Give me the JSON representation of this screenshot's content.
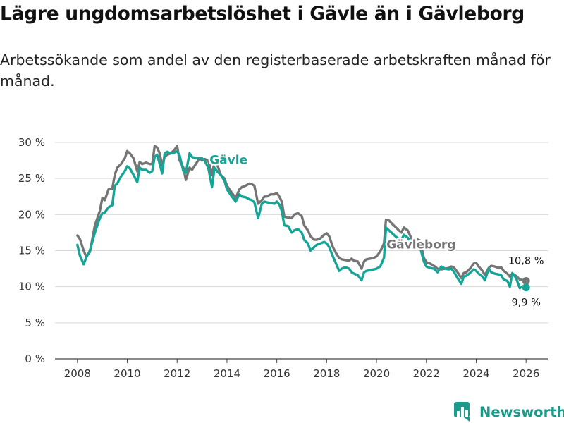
{
  "title": "Lägre ungdomsarbetslöshet i Gävle än i Gävleborg",
  "subtitle": "Arbetssökande som andel av den registerbaserade arbetskraften månad för månad.",
  "brand": {
    "name": "Newsworthy",
    "color": "#1c9a8a"
  },
  "chart_data": {
    "type": "line",
    "title": "Lägre ungdomsarbetslöshet i Gävle än i Gävleborg",
    "subtitle": "Arbetssökande som andel av den registerbaserade arbetskraften månad för månad.",
    "xlabel": "",
    "ylabel": "",
    "xlim": [
      2007.1,
      2026.9
    ],
    "ylim": [
      0,
      30
    ],
    "x_ticks": [
      2008,
      2010,
      2012,
      2014,
      2016,
      2018,
      2020,
      2022,
      2024,
      2026
    ],
    "x_tick_labels": [
      "2008",
      "2010",
      "2012",
      "2014",
      "2016",
      "2018",
      "2020",
      "2022",
      "2024",
      "2026"
    ],
    "y_ticks": [
      0,
      5,
      10,
      15,
      20,
      25,
      30
    ],
    "y_tick_labels": [
      "0 %",
      "5 %",
      "10 %",
      "15 %",
      "20 %",
      "25 %",
      "30 %"
    ],
    "grid": "horizontal",
    "legend": "inline labels",
    "series": [
      {
        "name": "Gävleborg",
        "color": "#757575",
        "end_label": "10,8 %",
        "points": [
          [
            2008.0,
            17.1
          ],
          [
            2008.1,
            16.6
          ],
          [
            2008.25,
            15.0
          ],
          [
            2008.35,
            14.2
          ],
          [
            2008.5,
            14.8
          ],
          [
            2008.7,
            18.5
          ],
          [
            2008.9,
            20.5
          ],
          [
            2009.0,
            22.3
          ],
          [
            2009.1,
            22.0
          ],
          [
            2009.25,
            23.5
          ],
          [
            2009.4,
            23.6
          ],
          [
            2009.5,
            25.5
          ],
          [
            2009.6,
            26.5
          ],
          [
            2009.75,
            27.0
          ],
          [
            2009.9,
            27.8
          ],
          [
            2010.0,
            28.8
          ],
          [
            2010.1,
            28.5
          ],
          [
            2010.25,
            27.8
          ],
          [
            2010.4,
            26.0
          ],
          [
            2010.5,
            27.3
          ],
          [
            2010.6,
            27.0
          ],
          [
            2010.75,
            27.2
          ],
          [
            2010.9,
            27.0
          ],
          [
            2011.0,
            27.0
          ],
          [
            2011.1,
            29.5
          ],
          [
            2011.2,
            29.3
          ],
          [
            2011.3,
            28.5
          ],
          [
            2011.4,
            26.8
          ],
          [
            2011.5,
            28.0
          ],
          [
            2011.6,
            28.3
          ],
          [
            2011.75,
            28.5
          ],
          [
            2011.9,
            29.0
          ],
          [
            2012.0,
            29.5
          ],
          [
            2012.1,
            27.5
          ],
          [
            2012.25,
            26.5
          ],
          [
            2012.35,
            24.8
          ],
          [
            2012.5,
            26.5
          ],
          [
            2012.6,
            26.2
          ],
          [
            2012.75,
            27.0
          ],
          [
            2012.9,
            27.8
          ],
          [
            2013.0,
            27.5
          ],
          [
            2013.1,
            27.7
          ],
          [
            2013.25,
            27.5
          ],
          [
            2013.4,
            25.5
          ],
          [
            2013.5,
            27.3
          ],
          [
            2013.6,
            27.0
          ],
          [
            2013.75,
            25.5
          ],
          [
            2013.9,
            25.0
          ],
          [
            2014.0,
            24.0
          ],
          [
            2014.2,
            23.0
          ],
          [
            2014.35,
            22.3
          ],
          [
            2014.5,
            23.5
          ],
          [
            2014.6,
            23.8
          ],
          [
            2014.75,
            24.0
          ],
          [
            2014.9,
            24.3
          ],
          [
            2015.0,
            24.2
          ],
          [
            2015.1,
            24.0
          ],
          [
            2015.25,
            21.5
          ],
          [
            2015.4,
            22.0
          ],
          [
            2015.5,
            22.5
          ],
          [
            2015.6,
            22.5
          ],
          [
            2015.75,
            22.8
          ],
          [
            2015.9,
            22.8
          ],
          [
            2016.0,
            23.0
          ],
          [
            2016.1,
            22.5
          ],
          [
            2016.2,
            21.8
          ],
          [
            2016.3,
            19.7
          ],
          [
            2016.45,
            19.6
          ],
          [
            2016.6,
            19.5
          ],
          [
            2016.7,
            20.0
          ],
          [
            2016.85,
            20.2
          ],
          [
            2017.0,
            19.8
          ],
          [
            2017.1,
            18.5
          ],
          [
            2017.25,
            17.8
          ],
          [
            2017.35,
            17.0
          ],
          [
            2017.5,
            16.5
          ],
          [
            2017.6,
            16.5
          ],
          [
            2017.75,
            16.7
          ],
          [
            2017.9,
            17.2
          ],
          [
            2018.0,
            17.4
          ],
          [
            2018.1,
            17.0
          ],
          [
            2018.25,
            15.5
          ],
          [
            2018.4,
            14.5
          ],
          [
            2018.5,
            14.0
          ],
          [
            2018.6,
            13.8
          ],
          [
            2018.75,
            13.7
          ],
          [
            2018.9,
            13.6
          ],
          [
            2019.0,
            13.9
          ],
          [
            2019.1,
            13.6
          ],
          [
            2019.25,
            13.5
          ],
          [
            2019.4,
            12.5
          ],
          [
            2019.5,
            13.5
          ],
          [
            2019.6,
            13.8
          ],
          [
            2019.75,
            13.9
          ],
          [
            2019.9,
            14.0
          ],
          [
            2020.0,
            14.2
          ],
          [
            2020.15,
            14.9
          ],
          [
            2020.3,
            16.0
          ],
          [
            2020.38,
            19.3
          ],
          [
            2020.5,
            19.2
          ],
          [
            2020.6,
            18.8
          ],
          [
            2020.75,
            18.3
          ],
          [
            2020.9,
            17.8
          ],
          [
            2021.0,
            17.5
          ],
          [
            2021.1,
            18.2
          ],
          [
            2021.25,
            17.8
          ],
          [
            2021.4,
            16.7
          ],
          [
            2021.5,
            16.5
          ],
          [
            2021.6,
            16.6
          ],
          [
            2021.75,
            16.4
          ],
          [
            2021.9,
            14.0
          ],
          [
            2022.0,
            13.4
          ],
          [
            2022.15,
            13.2
          ],
          [
            2022.3,
            12.9
          ],
          [
            2022.45,
            12.5
          ],
          [
            2022.6,
            12.4
          ],
          [
            2022.75,
            12.5
          ],
          [
            2022.9,
            12.6
          ],
          [
            2023.0,
            12.8
          ],
          [
            2023.1,
            12.7
          ],
          [
            2023.25,
            12.0
          ],
          [
            2023.4,
            11.2
          ],
          [
            2023.5,
            11.9
          ],
          [
            2023.6,
            12.0
          ],
          [
            2023.75,
            12.5
          ],
          [
            2023.9,
            13.2
          ],
          [
            2024.0,
            13.3
          ],
          [
            2024.1,
            12.8
          ],
          [
            2024.25,
            12.2
          ],
          [
            2024.35,
            11.6
          ],
          [
            2024.5,
            12.6
          ],
          [
            2024.6,
            12.9
          ],
          [
            2024.75,
            12.8
          ],
          [
            2024.9,
            12.6
          ],
          [
            2025.0,
            12.7
          ],
          [
            2025.1,
            12.2
          ],
          [
            2025.25,
            11.8
          ],
          [
            2025.35,
            11.4
          ],
          [
            2025.45,
            11.8
          ],
          [
            2025.6,
            11.5
          ],
          [
            2025.75,
            11.0
          ],
          [
            2025.9,
            10.9
          ],
          [
            2026.0,
            10.8
          ]
        ]
      },
      {
        "name": "Gävle",
        "color": "#14a596",
        "end_label": "9,9 %",
        "points": [
          [
            2008.0,
            15.8
          ],
          [
            2008.1,
            14.3
          ],
          [
            2008.25,
            13.1
          ],
          [
            2008.35,
            14.0
          ],
          [
            2008.5,
            15.0
          ],
          [
            2008.7,
            17.5
          ],
          [
            2008.9,
            19.5
          ],
          [
            2009.0,
            20.2
          ],
          [
            2009.1,
            20.3
          ],
          [
            2009.25,
            21.0
          ],
          [
            2009.4,
            21.3
          ],
          [
            2009.5,
            24.0
          ],
          [
            2009.6,
            24.3
          ],
          [
            2009.75,
            25.3
          ],
          [
            2009.9,
            26.0
          ],
          [
            2010.0,
            26.7
          ],
          [
            2010.1,
            26.4
          ],
          [
            2010.25,
            25.5
          ],
          [
            2010.4,
            24.5
          ],
          [
            2010.5,
            26.5
          ],
          [
            2010.6,
            26.2
          ],
          [
            2010.75,
            26.2
          ],
          [
            2010.9,
            25.8
          ],
          [
            2011.0,
            26.0
          ],
          [
            2011.1,
            28.0
          ],
          [
            2011.2,
            28.3
          ],
          [
            2011.3,
            27.0
          ],
          [
            2011.4,
            25.7
          ],
          [
            2011.5,
            28.5
          ],
          [
            2011.6,
            28.7
          ],
          [
            2011.75,
            28.5
          ],
          [
            2011.9,
            28.6
          ],
          [
            2012.0,
            28.8
          ],
          [
            2012.1,
            28.2
          ],
          [
            2012.25,
            26.0
          ],
          [
            2012.35,
            25.8
          ],
          [
            2012.5,
            28.5
          ],
          [
            2012.6,
            28.0
          ],
          [
            2012.75,
            27.8
          ],
          [
            2012.9,
            27.8
          ],
          [
            2013.0,
            27.8
          ],
          [
            2013.1,
            27.5
          ],
          [
            2013.25,
            26.5
          ],
          [
            2013.4,
            23.8
          ],
          [
            2013.5,
            26.5
          ],
          [
            2013.6,
            26.0
          ],
          [
            2013.75,
            25.5
          ],
          [
            2013.9,
            24.7
          ],
          [
            2014.0,
            23.5
          ],
          [
            2014.2,
            22.5
          ],
          [
            2014.35,
            21.8
          ],
          [
            2014.5,
            22.8
          ],
          [
            2014.6,
            22.5
          ],
          [
            2014.75,
            22.4
          ],
          [
            2014.9,
            22.1
          ],
          [
            2015.0,
            22.0
          ],
          [
            2015.1,
            21.7
          ],
          [
            2015.25,
            19.5
          ],
          [
            2015.4,
            21.5
          ],
          [
            2015.5,
            21.8
          ],
          [
            2015.6,
            21.7
          ],
          [
            2015.75,
            21.6
          ],
          [
            2015.9,
            21.5
          ],
          [
            2016.0,
            21.8
          ],
          [
            2016.1,
            21.4
          ],
          [
            2016.2,
            20.5
          ],
          [
            2016.3,
            18.5
          ],
          [
            2016.45,
            18.4
          ],
          [
            2016.6,
            17.5
          ],
          [
            2016.7,
            17.8
          ],
          [
            2016.85,
            18.0
          ],
          [
            2017.0,
            17.5
          ],
          [
            2017.1,
            16.5
          ],
          [
            2017.25,
            16.0
          ],
          [
            2017.35,
            15.0
          ],
          [
            2017.5,
            15.5
          ],
          [
            2017.6,
            15.8
          ],
          [
            2017.75,
            16.0
          ],
          [
            2017.9,
            16.2
          ],
          [
            2018.0,
            16.0
          ],
          [
            2018.1,
            15.5
          ],
          [
            2018.25,
            14.2
          ],
          [
            2018.4,
            13.0
          ],
          [
            2018.5,
            12.2
          ],
          [
            2018.6,
            12.5
          ],
          [
            2018.75,
            12.7
          ],
          [
            2018.9,
            12.5
          ],
          [
            2019.0,
            12.0
          ],
          [
            2019.1,
            11.8
          ],
          [
            2019.25,
            11.6
          ],
          [
            2019.4,
            10.9
          ],
          [
            2019.5,
            12.0
          ],
          [
            2019.6,
            12.2
          ],
          [
            2019.75,
            12.3
          ],
          [
            2019.9,
            12.4
          ],
          [
            2020.0,
            12.5
          ],
          [
            2020.15,
            12.8
          ],
          [
            2020.3,
            14.0
          ],
          [
            2020.38,
            18.2
          ],
          [
            2020.5,
            17.8
          ],
          [
            2020.6,
            17.5
          ],
          [
            2020.75,
            17.0
          ],
          [
            2020.9,
            16.6
          ],
          [
            2021.0,
            16.5
          ],
          [
            2021.1,
            17.2
          ],
          [
            2021.25,
            16.8
          ],
          [
            2021.4,
            16.0
          ],
          [
            2021.5,
            16.0
          ],
          [
            2021.6,
            16.2
          ],
          [
            2021.75,
            15.5
          ],
          [
            2021.9,
            13.5
          ],
          [
            2022.0,
            12.8
          ],
          [
            2022.15,
            12.6
          ],
          [
            2022.3,
            12.5
          ],
          [
            2022.45,
            12.0
          ],
          [
            2022.6,
            12.8
          ],
          [
            2022.75,
            12.5
          ],
          [
            2022.9,
            12.4
          ],
          [
            2023.0,
            12.5
          ],
          [
            2023.1,
            12.1
          ],
          [
            2023.25,
            11.2
          ],
          [
            2023.4,
            10.4
          ],
          [
            2023.5,
            11.4
          ],
          [
            2023.6,
            11.5
          ],
          [
            2023.75,
            11.9
          ],
          [
            2023.9,
            12.4
          ],
          [
            2024.0,
            12.2
          ],
          [
            2024.1,
            11.8
          ],
          [
            2024.25,
            11.4
          ],
          [
            2024.35,
            10.9
          ],
          [
            2024.5,
            12.5
          ],
          [
            2024.6,
            12.0
          ],
          [
            2024.75,
            11.8
          ],
          [
            2024.9,
            11.7
          ],
          [
            2025.0,
            11.6
          ],
          [
            2025.1,
            11.0
          ],
          [
            2025.25,
            10.8
          ],
          [
            2025.35,
            10.0
          ],
          [
            2025.45,
            11.9
          ],
          [
            2025.6,
            11.2
          ],
          [
            2025.75,
            9.8
          ],
          [
            2025.9,
            10.1
          ],
          [
            2026.0,
            9.9
          ]
        ]
      }
    ],
    "annotations": [
      {
        "text": "Gävle",
        "series": "Gävle",
        "x": 2013.3,
        "y": 27.0
      },
      {
        "text": "Gävleborg",
        "series": "Gävleborg",
        "x": 2020.4,
        "y": 15.3
      }
    ]
  }
}
